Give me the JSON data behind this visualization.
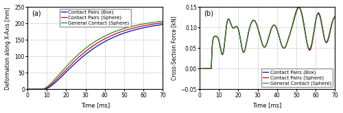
{
  "title_a": "(a)",
  "title_b": "(b)",
  "xlabel": "Time [ms]",
  "ylabel_a": "Deformation along X-Axis [mm]",
  "ylabel_b": "Cross-Section Force [kN]",
  "xlim": [
    0,
    70
  ],
  "ylim_a": [
    0,
    250
  ],
  "ylim_b": [
    -0.05,
    0.15
  ],
  "yticks_a": [
    0,
    50,
    100,
    150,
    200,
    250
  ],
  "yticks_b": [
    -0.05,
    0,
    0.05,
    0.1,
    0.15
  ],
  "xticks": [
    0,
    10,
    20,
    30,
    40,
    50,
    60,
    70
  ],
  "colors": {
    "box": "#0000cc",
    "sphere": "#cc0000",
    "general": "#228B22"
  },
  "legend_labels": [
    "Contact Pairs (Box)",
    "Contact Pairs (Sphere)",
    "General Contact (Sphere)"
  ],
  "linewidth": 0.9,
  "background_color": "#ffffff",
  "grid_color": "#d0d0d0"
}
